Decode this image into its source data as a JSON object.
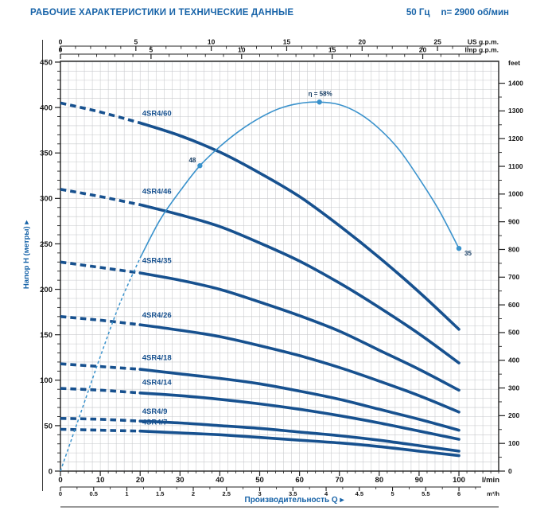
{
  "header": {
    "title": "РАБОЧИЕ ХАРАКТЕРИСТИКИ И ТЕХНИЧЕСКИЕ ДАННЫЕ",
    "frequency": "50 Гц",
    "speed": "n= 2900 об/мин"
  },
  "colors": {
    "header_blue": "#1763a8",
    "curve_navy": "#17518f",
    "eta_blue": "#3a92cc",
    "grid": "#c6c8cb",
    "axis": "#222222",
    "tick_text": "#151515",
    "marker_text": "#10375f"
  },
  "chart_data": {
    "type": "line",
    "title": "РАБОЧИЕ ХАРАКТЕРИСТИКИ И ТЕХНИЧЕСКИЕ ДАННЫЕ",
    "xlabel": "Производительность Q",
    "ylabel": "Напор H (метры)",
    "xlim_lmin": [
      0,
      110
    ],
    "ylim_m": [
      0,
      450
    ],
    "grid": {
      "on": true,
      "x_step_lmin": 2,
      "y_step_m": 10
    },
    "x_axes": [
      {
        "id": "us_gpm",
        "unit": "US g.p.m.",
        "labels": [
          0,
          5,
          10,
          15,
          20,
          25
        ],
        "lmin_per_unit": 3.785,
        "minor_step": 1,
        "max_minor": 27
      },
      {
        "id": "imp_gpm",
        "unit": "Imp g.p.m.",
        "labels": [
          0,
          5,
          10,
          15,
          20
        ],
        "lmin_per_unit": 4.546,
        "minor_step": 1,
        "max_minor": 22
      },
      {
        "id": "lmin",
        "unit": "l/min",
        "labels": [
          0,
          10,
          20,
          30,
          40,
          50,
          60,
          70,
          80,
          90,
          100
        ],
        "lmin_per_unit": 1,
        "minor_step": 2,
        "max_minor": 110
      },
      {
        "id": "m3h",
        "unit": "m³/h",
        "labels": [
          0,
          0.5,
          1,
          1.5,
          2,
          2.5,
          3,
          3.5,
          4,
          4.5,
          5,
          5.5,
          6
        ],
        "lmin_per_unit": 16.667,
        "minor_step": 0.25,
        "max_minor": 6.25
      }
    ],
    "y_axes": [
      {
        "id": "meters",
        "unit": "Напор H (метры)",
        "labels": [
          0,
          50,
          100,
          150,
          200,
          250,
          300,
          350,
          400,
          450
        ],
        "m_per_unit": 1,
        "minor_step": 10,
        "max_minor": 450
      },
      {
        "id": "feet",
        "unit": "feet",
        "labels": [
          0,
          100,
          200,
          300,
          400,
          500,
          600,
          700,
          800,
          900,
          1000,
          1100,
          1200,
          1300,
          1400
        ],
        "m_per_unit": 0.3048,
        "minor_step": 50,
        "max_minor": 1400
      }
    ],
    "series": [
      {
        "name": "4SR4/60",
        "dash_until": 20,
        "label_q": 20.5,
        "label_h": 391,
        "points": [
          [
            0,
            405
          ],
          [
            10,
            395
          ],
          [
            20,
            383
          ],
          [
            30,
            369
          ],
          [
            40,
            351
          ],
          [
            50,
            328
          ],
          [
            60,
            302
          ],
          [
            70,
            270
          ],
          [
            80,
            235
          ],
          [
            90,
            197
          ],
          [
            100,
            156
          ]
        ]
      },
      {
        "name": "4SR4/46",
        "dash_until": 20,
        "label_q": 20.5,
        "label_h": 305,
        "points": [
          [
            0,
            310
          ],
          [
            10,
            302
          ],
          [
            20,
            293
          ],
          [
            30,
            282
          ],
          [
            40,
            269
          ],
          [
            50,
            251
          ],
          [
            60,
            231
          ],
          [
            70,
            207
          ],
          [
            80,
            180
          ],
          [
            90,
            151
          ],
          [
            100,
            119
          ]
        ]
      },
      {
        "name": "4SR4/35",
        "dash_until": 20,
        "label_q": 20.5,
        "label_h": 229,
        "points": [
          [
            0,
            230
          ],
          [
            10,
            224
          ],
          [
            20,
            218
          ],
          [
            30,
            210
          ],
          [
            40,
            200
          ],
          [
            50,
            186
          ],
          [
            60,
            171
          ],
          [
            70,
            154
          ],
          [
            80,
            133
          ],
          [
            90,
            112
          ],
          [
            100,
            89
          ]
        ]
      },
      {
        "name": "4SR4/26",
        "dash_until": 20,
        "label_q": 20.5,
        "label_h": 169,
        "points": [
          [
            0,
            170
          ],
          [
            10,
            166
          ],
          [
            20,
            161
          ],
          [
            30,
            155
          ],
          [
            40,
            148
          ],
          [
            50,
            138
          ],
          [
            60,
            127
          ],
          [
            70,
            114
          ],
          [
            80,
            99
          ],
          [
            90,
            83
          ],
          [
            100,
            65
          ]
        ]
      },
      {
        "name": "4SR4/18",
        "dash_until": 20,
        "label_q": 20.5,
        "label_h": 122,
        "points": [
          [
            0,
            118
          ],
          [
            10,
            115
          ],
          [
            20,
            112
          ],
          [
            30,
            107
          ],
          [
            40,
            102
          ],
          [
            50,
            96
          ],
          [
            60,
            88
          ],
          [
            70,
            79
          ],
          [
            80,
            68
          ],
          [
            90,
            57
          ],
          [
            100,
            45
          ]
        ]
      },
      {
        "name": "4SR4/14",
        "dash_until": 20,
        "label_q": 20.5,
        "label_h": 95,
        "points": [
          [
            0,
            91
          ],
          [
            10,
            89
          ],
          [
            20,
            86
          ],
          [
            30,
            83
          ],
          [
            40,
            79
          ],
          [
            50,
            74
          ],
          [
            60,
            68
          ],
          [
            70,
            61
          ],
          [
            80,
            53
          ],
          [
            90,
            44
          ],
          [
            100,
            35
          ]
        ]
      },
      {
        "name": "4SR4/9",
        "dash_until": 20,
        "label_q": 20.5,
        "label_h": 63,
        "points": [
          [
            0,
            58
          ],
          [
            10,
            57
          ],
          [
            20,
            55
          ],
          [
            30,
            53
          ],
          [
            40,
            50
          ],
          [
            50,
            47
          ],
          [
            60,
            43
          ],
          [
            70,
            39
          ],
          [
            80,
            34
          ],
          [
            90,
            28
          ],
          [
            100,
            22
          ]
        ]
      },
      {
        "name": "4SR4/7",
        "dash_until": 20,
        "label_q": 20.5,
        "label_h": 51,
        "points": [
          [
            0,
            46
          ],
          [
            10,
            45
          ],
          [
            20,
            44
          ],
          [
            30,
            42
          ],
          [
            40,
            40
          ],
          [
            50,
            37
          ],
          [
            60,
            34
          ],
          [
            70,
            31
          ],
          [
            80,
            27
          ],
          [
            90,
            22
          ],
          [
            100,
            17
          ]
        ]
      }
    ],
    "efficiency": {
      "name": "η",
      "percent_to_m": 7,
      "dash_until": 20,
      "points": [
        [
          0,
          0
        ],
        [
          5,
          9
        ],
        [
          10,
          18
        ],
        [
          15,
          26.5
        ],
        [
          20,
          33.5
        ],
        [
          25,
          39.5
        ],
        [
          30,
          44
        ],
        [
          35,
          48
        ],
        [
          40,
          51
        ],
        [
          45,
          53.5
        ],
        [
          50,
          55.5
        ],
        [
          55,
          57
        ],
        [
          60,
          57.8
        ],
        [
          65,
          58
        ],
        [
          70,
          57.6
        ],
        [
          75,
          56.2
        ],
        [
          80,
          53.8
        ],
        [
          85,
          50.5
        ],
        [
          90,
          46
        ],
        [
          95,
          41
        ],
        [
          100,
          35
        ]
      ],
      "markers": [
        {
          "q": 35,
          "eta": 48,
          "label": "48",
          "placement": "left"
        },
        {
          "q": 65,
          "eta": 58,
          "label": "η = 58%",
          "placement": "above"
        },
        {
          "q": 100,
          "eta": 35,
          "label": "35",
          "placement": "right"
        }
      ]
    }
  }
}
